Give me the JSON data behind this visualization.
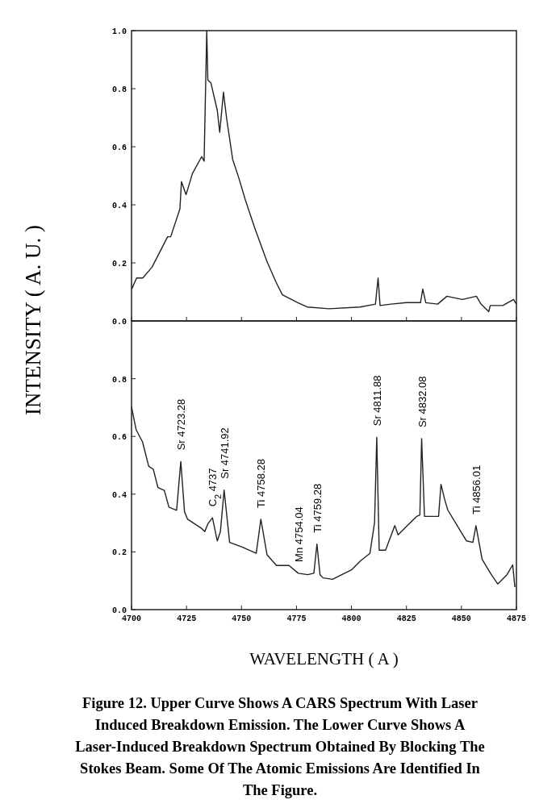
{
  "chart_data": [
    {
      "type": "line",
      "ylabel": "INTENSITY ( A. U. )",
      "xlim": [
        4700,
        4875
      ],
      "xticks": [
        4700,
        4725,
        4750,
        4775,
        4800,
        4825,
        4850,
        4875
      ],
      "ylim": [
        0,
        1.0
      ],
      "yticks": [
        {
          "value": 0,
          "label": "0.0"
        },
        {
          "value": 0.2,
          "label": "0.2"
        },
        {
          "value": 0.4,
          "label": "0.4"
        },
        {
          "value": 0.6,
          "label": "0.6"
        },
        {
          "value": 0.8,
          "label": "0.8"
        },
        {
          "value": 1,
          "label": "1.0"
        }
      ],
      "tick_labels": "y",
      "series": [
        {
          "color": "#222222",
          "x": [
            4700.1,
            4702.3,
            4705.1,
            4709.3,
            4716.4,
            4717.8,
            4722.0,
            4722.7,
            4724.8,
            4727.7,
            4731.9,
            4733.0,
            4734.2,
            4734.7,
            4736.1,
            4739.0,
            4740.1,
            4741.8,
            4743.2,
            4746.0,
            4748.8,
            4751.7,
            4755.9,
            4761.5,
            4765.8,
            4768.6,
            4775.6,
            4779.9,
            4789.8,
            4803.9,
            4810.9,
            4812.1,
            4813.0,
            4818.0,
            4825.0,
            4831.4,
            4832.4,
            4833.8,
            4839.2,
            4843.4,
            4850.4,
            4856.8,
            4858.9,
            4862.4,
            4863.1,
            4868.8,
            4873.7,
            4875
          ],
          "values": [
            0.11,
            0.148,
            0.148,
            0.185,
            0.29,
            0.29,
            0.386,
            0.48,
            0.435,
            0.508,
            0.566,
            0.55,
            1.0,
            0.83,
            0.82,
            0.725,
            0.65,
            0.788,
            0.7,
            0.556,
            0.492,
            0.418,
            0.323,
            0.206,
            0.132,
            0.09,
            0.063,
            0.048,
            0.042,
            0.048,
            0.058,
            0.148,
            0.053,
            0.058,
            0.063,
            0.063,
            0.11,
            0.063,
            0.058,
            0.085,
            0.074,
            0.085,
            0.058,
            0.032,
            0.053,
            0.053,
            0.074,
            0.058
          ]
        }
      ]
    },
    {
      "type": "line",
      "xlabel": "WAVELENGTH ( A )",
      "xlim": [
        4700,
        4875
      ],
      "xticks": [
        4700,
        4725,
        4750,
        4775,
        4800,
        4825,
        4850,
        4875
      ],
      "ylim": [
        0,
        1.0
      ],
      "yticks": [
        {
          "value": 0,
          "label": "0.0"
        },
        {
          "value": 0.2,
          "label": "0.2"
        },
        {
          "value": 0.4,
          "label": "0.4"
        },
        {
          "value": 0.6,
          "label": "0.6"
        },
        {
          "value": 0.8,
          "label": "0.8"
        }
      ],
      "series": [
        {
          "color": "#222222",
          "x": [
            4700,
            4702.1,
            4705.0,
            4707.8,
            4709.9,
            4712.0,
            4714.9,
            4717.0,
            4720.5,
            4722.4,
            4724.1,
            4725.5,
            4731.9,
            4733.3,
            4734.7,
            4736.8,
            4739.0,
            4740.4,
            4742.1,
            4744.6,
            4750.3,
            4756.7,
            4758.8,
            4761.6,
            4765.9,
            4771.6,
            4775.8,
            4780.1,
            4782.9,
            4784.3,
            4785.7,
            4787.1,
            4791.4,
            4795.6,
            4799.9,
            4804.1,
            4808.4,
            4810.5,
            4811.5,
            4812.6,
            4815.5,
            4819.7,
            4821.2,
            4825.4,
            4829.7,
            4831.1,
            4831.9,
            4833.2,
            4839.6,
            4840.7,
            4842.4,
            4843.8,
            4848.1,
            4852.3,
            4855.2,
            4856.6,
            4859.4,
            4863.6,
            4866.5,
            4870.7,
            4873.3,
            4874.3
          ],
          "values": [
            0.702,
            0.623,
            0.581,
            0.497,
            0.486,
            0.423,
            0.413,
            0.355,
            0.344,
            0.513,
            0.339,
            0.313,
            0.281,
            0.27,
            0.297,
            0.318,
            0.238,
            0.27,
            0.414,
            0.233,
            0.217,
            0.195,
            0.313,
            0.19,
            0.153,
            0.153,
            0.126,
            0.121,
            0.126,
            0.227,
            0.121,
            0.11,
            0.105,
            0.121,
            0.137,
            0.169,
            0.195,
            0.302,
            0.597,
            0.206,
            0.206,
            0.291,
            0.259,
            0.291,
            0.323,
            0.328,
            0.592,
            0.323,
            0.323,
            0.434,
            0.381,
            0.345,
            0.291,
            0.238,
            0.233,
            0.291,
            0.174,
            0.121,
            0.089,
            0.121,
            0.155,
            0.078
          ]
        }
      ],
      "annotations": [
        {
          "text": "Sr  4723.28",
          "x": 4722.4,
          "y": 0.513
        },
        {
          "text": "C$_{2}$  4737",
          "x": 4736.8,
          "y": 0.318
        },
        {
          "text": "Sr  4741.92",
          "x": 4742.1,
          "y": 0.414
        },
        {
          "text": "Ti  4758.28",
          "x": 4758.8,
          "y": 0.313
        },
        {
          "text": "Mn  4754.04",
          "x": 4775.8,
          "y": 0.126
        },
        {
          "text": "Ti  4759.28",
          "x": 4784.3,
          "y": 0.227
        },
        {
          "text": "Sr  4811.88",
          "x": 4811.5,
          "y": 0.597
        },
        {
          "text": "Sr  4832.08",
          "x": 4831.9,
          "y": 0.592
        },
        {
          "text": "Ti  4856.01",
          "x": 4856.6,
          "y": 0.291
        },
        "Figure 12. Upper Curve Shows A CARS Spectrum With Laser Induced Breakdown Emission. The Lower Curve Shows A Laser-Induced Breakdown Spectrum Obtained By Blocking The Stokes Beam. Some Of The Atomic Emissions Are Identified In The Figure."
      ]
    }
  ]
}
